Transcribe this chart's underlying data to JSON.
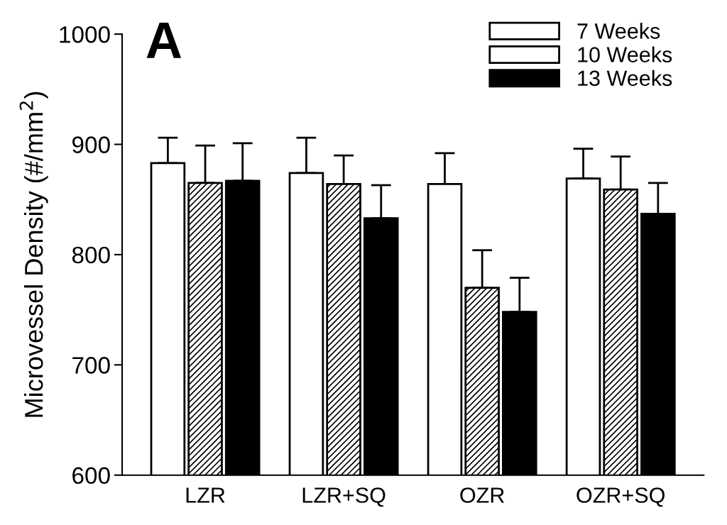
{
  "chart_data": {
    "type": "bar",
    "ylabel": "Microvessel Density (#/mm$^{2}$)",
    "annotations": [
      "A"
    ],
    "categories": [
      "LZR",
      "LZR+SQ",
      "OZR",
      "OZR+SQ"
    ],
    "series": [
      {
        "name": "7 Weeks",
        "color": "#ffffff",
        "values": [
          883,
          874,
          864,
          869
        ],
        "errors": [
          [
            883,
            906
          ],
          [
            874,
            906
          ],
          [
            864,
            892
          ],
          [
            869,
            896
          ]
        ]
      },
      {
        "name": "10 Weeks",
        "color": "#ffffff",
        "values": [
          865,
          864,
          770,
          859
        ],
        "errors": [
          [
            865,
            899
          ],
          [
            864,
            890
          ],
          [
            770,
            804
          ],
          [
            859,
            889
          ]
        ]
      },
      {
        "name": "13 Weeks",
        "color": "#000000",
        "values": [
          867,
          833,
          748,
          837
        ],
        "errors": [
          [
            867,
            901
          ],
          [
            833,
            863
          ],
          [
            748,
            779
          ],
          [
            837,
            865
          ]
        ]
      }
    ],
    "ylim": [
      600,
      1000
    ],
    "yticks": [
      600,
      700,
      800,
      900,
      1000
    ],
    "grid": false,
    "legend": "top right"
  }
}
